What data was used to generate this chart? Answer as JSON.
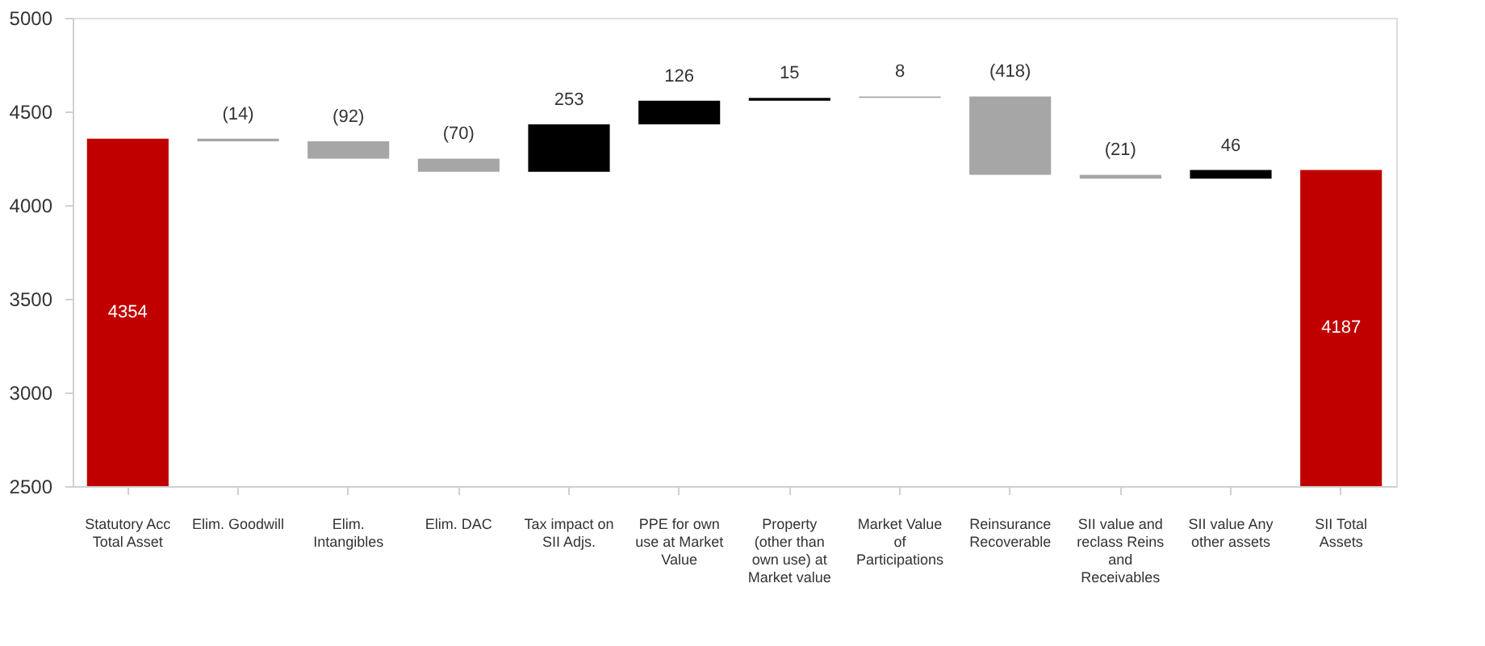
{
  "chart_data": {
    "type": "bar",
    "categories": [
      "Statutory Acc Total Asset",
      "Elim. Goodwill",
      "Elim. Intangibles",
      "Elim. DAC",
      "Tax impact on SII Adjs.",
      "PPE for own use at Market Value",
      "Property (other than own use) at Market value",
      "Market Value of Participations",
      "Reinsurance Recoverable",
      "SII value and reclass Reins and Receivables",
      "SII value Any other assets",
      "SII Total Assets"
    ],
    "values": [
      4354,
      -14,
      -92,
      -70,
      253,
      126,
      15,
      8,
      -418,
      -21,
      46,
      4187
    ],
    "base": [
      null,
      4354,
      4340,
      4248,
      4178,
      4431,
      4557,
      4572,
      4580,
      4162,
      4141,
      null
    ],
    "colors": [
      "#c00000",
      "#a6a6a6",
      "#a6a6a6",
      "#a6a6a6",
      "#000000",
      "#000000",
      "#000000",
      "#a6a6a6",
      "#a6a6a6",
      "#a6a6a6",
      "#000000",
      "#c00000"
    ],
    "value_labels": [
      "4354",
      "(14)",
      "(92)",
      "(70)",
      "253",
      "126",
      "15",
      "8",
      "(418)",
      "(21)",
      "46",
      "4187"
    ],
    "ylim": [
      2500,
      5000
    ],
    "yticks": [
      2500,
      3000,
      3500,
      4000,
      4500,
      5000
    ],
    "grid": false
  }
}
